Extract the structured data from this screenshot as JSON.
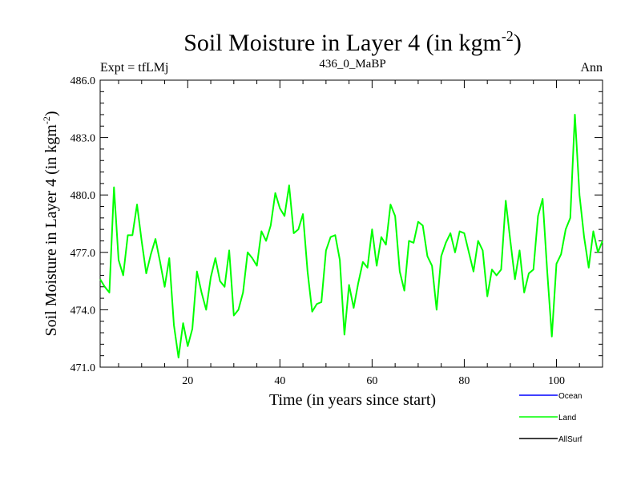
{
  "chart_data": {
    "type": "line",
    "title_main": "Soil Moisture in Layer 4 (in kgm",
    "title_sup": "-2",
    "title_close": ")",
    "subtitle_left": "Expt = tfLMj",
    "subtitle_center": "436_0_MaBP",
    "subtitle_right": "Ann",
    "xlabel": "Time (in years since start)",
    "ylabel_main": "Soil Moisture in Layer 4 (in kgm",
    "ylabel_sup": "-2",
    "ylabel_close": ")",
    "xlim": [
      1,
      110
    ],
    "ylim": [
      471.0,
      486.0
    ],
    "x_ticks": [
      20,
      40,
      60,
      80,
      100
    ],
    "x_tick_labels": [
      "20",
      "40",
      "60",
      "80",
      "100"
    ],
    "y_ticks": [
      471.0,
      474.0,
      477.0,
      480.0,
      483.0,
      486.0
    ],
    "y_tick_labels": [
      "471.0",
      "474.0",
      "477.0",
      "480.0",
      "483.0",
      "486.0"
    ],
    "legend": [
      {
        "name": "Ocean",
        "color": "#0000ff"
      },
      {
        "name": "Land",
        "color": "#00ff00"
      },
      {
        "name": "AllSurf",
        "color": "#000000"
      }
    ],
    "series": [
      {
        "name": "Land",
        "color": "#00ff00",
        "x_start": 1,
        "values": [
          475.6,
          475.2,
          474.9,
          480.4,
          476.6,
          475.8,
          477.9,
          477.9,
          479.5,
          477.6,
          475.9,
          476.9,
          477.7,
          476.5,
          475.2,
          476.7,
          473.2,
          471.5,
          473.3,
          472.1,
          473.0,
          476.0,
          474.9,
          474.0,
          475.7,
          476.7,
          475.5,
          475.2,
          477.1,
          473.7,
          474.0,
          474.9,
          477.0,
          476.7,
          476.3,
          478.1,
          477.6,
          478.4,
          480.1,
          479.3,
          478.9,
          480.5,
          478.0,
          478.2,
          479.0,
          476.0,
          473.9,
          474.3,
          474.4,
          477.1,
          477.8,
          477.9,
          476.6,
          472.7,
          475.3,
          474.1,
          475.4,
          476.5,
          476.2,
          478.2,
          476.3,
          477.8,
          477.4,
          479.5,
          478.9,
          476.0,
          475.0,
          477.6,
          477.5,
          478.6,
          478.4,
          476.8,
          476.3,
          474.0,
          476.8,
          477.5,
          478.0,
          477.0,
          478.1,
          478.0,
          477.0,
          476.0,
          477.6,
          477.1,
          474.7,
          476.1,
          475.8,
          476.1,
          479.7,
          477.6,
          475.6,
          477.1,
          474.9,
          475.9,
          476.1,
          478.9,
          479.8,
          476.0,
          472.6,
          476.4,
          476.9,
          478.2,
          478.8,
          484.2,
          480.0,
          477.8,
          476.2,
          478.1,
          477.0,
          477.6
        ]
      }
    ]
  }
}
